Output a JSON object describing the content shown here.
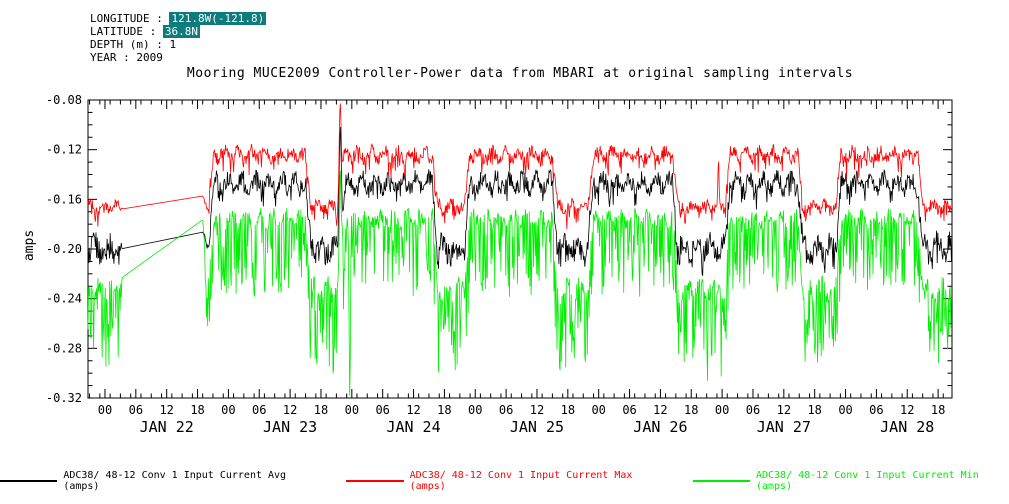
{
  "info": {
    "lines": [
      {
        "label": "LONGITUDE : ",
        "value": "121.8W(-121.8)",
        "highlight": true
      },
      {
        "label": "LATITUDE : ",
        "value": "36.8N",
        "highlight": true
      },
      {
        "label": "DEPTH (m) : ",
        "value": "1",
        "highlight": false
      },
      {
        "label": "YEAR : ",
        "value": "2009",
        "highlight": false
      }
    ]
  },
  "legend": [
    {
      "label": "ADC38/ 48-12 Conv 1 Input Current Avg (amps)",
      "color": "#000000"
    },
    {
      "label": "ADC38/ 48-12 Conv 1 Input Current Max (amps)",
      "color": "#ff0000"
    },
    {
      "label": "ADC38/ 48-12 Conv 1 Input Current Min (amps)",
      "color": "#00ee00"
    }
  ],
  "chart_data": {
    "type": "line",
    "title": "Mooring MUCE2009 Controller-Power data from MBARI at original sampling intervals",
    "xlabel": "",
    "ylabel": "amps",
    "ylim": [
      -0.32,
      -0.08
    ],
    "x_range": [
      -3.3,
      164.7
    ],
    "grid": false,
    "legend_position": "bottom",
    "y_ticks": {
      "values": [
        -0.08,
        -0.12,
        -0.16,
        -0.2,
        -0.24,
        -0.28,
        -0.32
      ],
      "labels": [
        "-0.08",
        "-0.12",
        "-0.16",
        "-0.20",
        "-0.24",
        "-0.28",
        "-0.32"
      ],
      "minor_step": 0.01
    },
    "x_ticks": {
      "start_hour": 0,
      "step_hours": 6,
      "count": 28,
      "labels": [
        "00",
        "06",
        "12",
        "18",
        "00",
        "06",
        "12",
        "18",
        "00",
        "06",
        "12",
        "18",
        "00",
        "06",
        "12",
        "18",
        "00",
        "06",
        "12",
        "18",
        "00",
        "06",
        "12",
        "18",
        "00",
        "06",
        "12",
        "18"
      ],
      "minor_step_hours": 2
    },
    "day_labels": {
      "labels": [
        "JAN 22",
        "JAN 23",
        "JAN 24",
        "JAN 25",
        "JAN 26",
        "JAN 27",
        "JAN 28"
      ],
      "center_hours": [
        12,
        36,
        60,
        84,
        108,
        132,
        156
      ]
    },
    "series": [
      {
        "name": "ADC38/ 48-12 Conv 1 Input Current Avg (amps)",
        "key": "avg",
        "color": "#000000"
      },
      {
        "name": "ADC38/ 48-12 Conv 1 Input Current Max (amps)",
        "key": "max",
        "color": "#ff0000"
      },
      {
        "name": "ADC38/ 48-12 Conv 1 Input Current Min (amps)",
        "key": "min",
        "color": "#00ee00"
      }
    ],
    "pattern": {
      "note": "Values estimated from plot: daily square-wave duty cycle between a high-current plateau (~00:00-16:00) and a low period (~16:00-23:00); data gap on JAN 22 ~03:00-19:30 shown as straight interpolation; units amps, hours measured from JAN 22 00:00 2009.",
      "sample_step_hours": 0.12,
      "osc_period_hours": 2.6,
      "states": {
        "high": {
          "max": {
            "base": -0.124,
            "amp": 0.0065,
            "dip": 0.015,
            "dipProb": 0.1
          },
          "avg": {
            "base": -0.147,
            "amp": 0.0085,
            "dip": 0.012,
            "dipProb": 0.15
          },
          "min": {
            "base": -0.176,
            "amp": 0.007,
            "dip": 0.058,
            "dipProb": 0.38
          }
        },
        "low": {
          "max": {
            "base": -0.166,
            "amp": 0.0055,
            "dip": 0.012,
            "dipProb": 0.15
          },
          "avg": {
            "base": -0.199,
            "amp": 0.0105,
            "dip": 0.012,
            "dipProb": 0.2
          },
          "min": {
            "base": -0.233,
            "amp": 0.009,
            "dip": 0.062,
            "dipProb": 0.42
          }
        }
      },
      "gap_levels": {
        "start": {
          "max": -0.168,
          "avg": -0.2,
          "min": -0.224
        },
        "end": {
          "max": -0.157,
          "avg": -0.186,
          "min": -0.175
        }
      },
      "segments": [
        {
          "t0": -3.3,
          "t1": 3.0,
          "state": "low"
        },
        {
          "t0": 3.0,
          "t1": 19.5,
          "state": "gap"
        },
        {
          "t0": 19.5,
          "t1": 20.6,
          "state": "low"
        },
        {
          "t0": 20.6,
          "t1": 39.5,
          "state": "high"
        },
        {
          "t0": 39.5,
          "t1": 46.1,
          "state": "low"
        },
        {
          "t0": 46.1,
          "t1": 64.2,
          "state": "high"
        },
        {
          "t0": 64.2,
          "t1": 70.4,
          "state": "low"
        },
        {
          "t0": 70.4,
          "t1": 87.5,
          "state": "high"
        },
        {
          "t0": 87.5,
          "t1": 94.4,
          "state": "low"
        },
        {
          "t0": 94.4,
          "t1": 110.9,
          "state": "high"
        },
        {
          "t0": 110.9,
          "t1": 121.0,
          "state": "low"
        },
        {
          "t0": 121.0,
          "t1": 135.2,
          "state": "high"
        },
        {
          "t0": 135.2,
          "t1": 142.6,
          "state": "low"
        },
        {
          "t0": 142.6,
          "t1": 158.5,
          "state": "high"
        },
        {
          "t0": 158.5,
          "t1": 164.7,
          "state": "low"
        }
      ],
      "events": [
        {
          "t": 45.75,
          "w": 0.3,
          "peaks": {
            "max": -0.082,
            "avg": -0.101,
            "min": -0.136
          }
        },
        {
          "t": 47.6,
          "w": 0.18,
          "peaks": {
            "min": -0.32
          }
        },
        {
          "t": 119.3,
          "w": 0.15,
          "peaks": {
            "max": -0.126
          }
        }
      ]
    }
  }
}
